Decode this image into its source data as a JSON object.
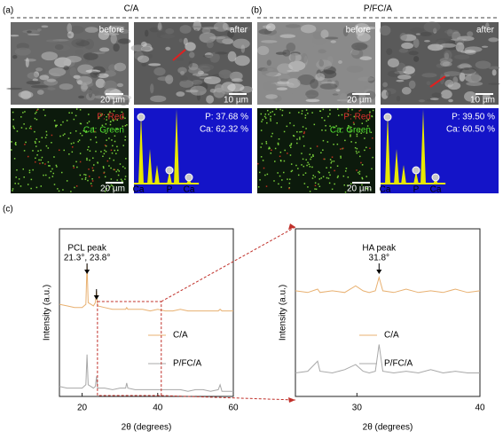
{
  "panel_labels": [
    "(a)",
    "(b)",
    "(c)"
  ],
  "panels": [
    {
      "title": "C/A",
      "before_label": "before",
      "before_scale": "20 µm",
      "after_label": "after",
      "after_scale": "10 µm",
      "map_legend": [
        "P: Red",
        "Ca: Green"
      ],
      "map_scale": "20 µm",
      "eds_text": [
        "P: 37.68 %",
        "Ca: 62.32 %"
      ],
      "eds_peaks": [
        "Ca",
        "P",
        "Ca"
      ]
    },
    {
      "title": "P/FC/A",
      "before_label": "before",
      "before_scale": "20 µm",
      "after_label": "after",
      "after_scale": "10 µm",
      "map_legend": [
        "P: Red",
        "Ca: Green"
      ],
      "map_scale": "20 µm",
      "eds_text": [
        "P: 39.50 %",
        "Ca: 60.50 %"
      ],
      "eds_peaks": [
        "Ca",
        "P",
        "Ca"
      ]
    }
  ],
  "chart_data": [
    {
      "type": "line",
      "xlabel": "2θ (degrees)",
      "ylabel": "Intensity (a.u.)",
      "xlim": [
        14,
        60
      ],
      "ylim": [
        0,
        100
      ],
      "xticks": [
        20,
        40,
        60
      ],
      "annotations": [
        "PCL peak",
        "21.3°, 23.8°"
      ],
      "x": [
        14,
        16,
        18,
        20,
        21,
        21.3,
        21.6,
        23,
        23.5,
        23.8,
        24.1,
        26,
        28,
        30,
        31.5,
        31.8,
        32.1,
        34,
        36,
        38,
        40,
        42,
        44,
        46,
        48,
        50,
        52,
        54,
        56,
        56.5,
        57,
        58,
        60
      ],
      "series": [
        {
          "name": "C/A",
          "color": "#e8b070",
          "values": [
            55,
            54,
            53,
            53,
            55,
            79,
            56,
            54,
            56,
            63,
            54,
            53,
            52,
            52,
            52,
            53,
            52,
            52,
            52,
            51,
            52,
            51,
            51,
            52,
            51,
            51,
            51,
            51,
            51,
            52,
            51,
            51,
            51
          ]
        },
        {
          "name": "P/FC/A",
          "color": "#a8a8a8",
          "values": [
            6,
            5,
            5,
            5,
            7,
            25,
            7,
            5,
            6,
            12,
            5,
            5,
            4,
            5,
            5,
            8,
            5,
            4,
            4,
            4,
            4,
            4,
            4,
            4,
            3,
            4,
            4,
            3,
            4,
            7,
            3,
            3,
            3
          ]
        }
      ]
    },
    {
      "type": "line",
      "xlabel": "2θ (degrees)",
      "ylabel": "Intensity (a.u.)",
      "xlim": [
        25,
        40
      ],
      "ylim": [
        0,
        100
      ],
      "xticks": [
        30,
        40
      ],
      "annotations": [
        "HA peak",
        "31.8°"
      ],
      "x": [
        25,
        26,
        26.8,
        27,
        28,
        29,
        29.9,
        30.5,
        31,
        31.5,
        31.8,
        32.1,
        33,
        34,
        35,
        36,
        37,
        38,
        39,
        40
      ],
      "series": [
        {
          "name": "C/A",
          "color": "#e8b070",
          "values": [
            63,
            62,
            64,
            62,
            63,
            62,
            66,
            63,
            62,
            63,
            71,
            63,
            62,
            64,
            62,
            63,
            62,
            64,
            62,
            63
          ]
        },
        {
          "name": "P/FC/A",
          "color": "#a8a8a8",
          "values": [
            14,
            15,
            21,
            15,
            14,
            16,
            19,
            15,
            14,
            15,
            31,
            15,
            14,
            15,
            14,
            16,
            14,
            15,
            14,
            14
          ]
        }
      ]
    }
  ]
}
